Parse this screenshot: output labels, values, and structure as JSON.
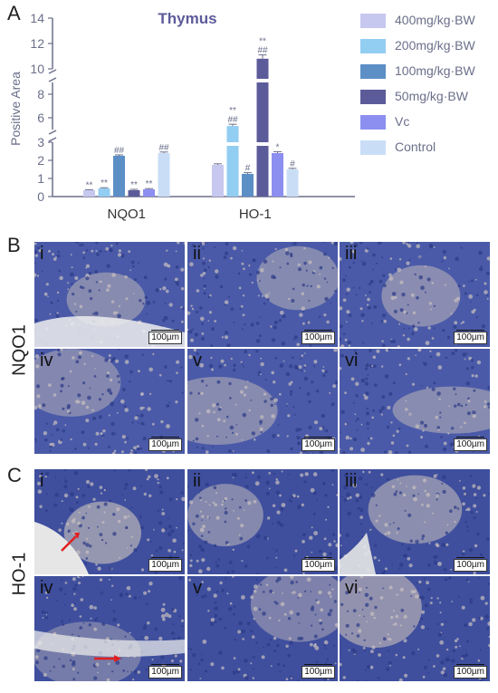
{
  "panel_letters": {
    "a": "A",
    "b": "B",
    "c": "C"
  },
  "row_labels": {
    "nqo1": "NQO1",
    "ho1": "HO-1"
  },
  "scale_bar_label": "100µm",
  "micrograph_numerals": [
    "i",
    "ii",
    "iii",
    "iv",
    "v",
    "vi"
  ],
  "colors": {
    "400": "#c7c8f0",
    "200": "#92cdf2",
    "100": "#5b8fc6",
    "50": "#5c5b9a",
    "Vc": "#8c8ff0",
    "Control": "#c9def6",
    "axis": "#6b6f8a",
    "title": "#5c5b9a"
  },
  "chart_data": {
    "type": "bar",
    "title": "Thymus",
    "ylabel": "Positive Area",
    "xlabel": "",
    "categories": [
      "NQO1",
      "HO-1"
    ],
    "axis_segments": [
      {
        "range": [
          0,
          3
        ],
        "ticks": [
          0,
          1,
          2,
          3
        ]
      },
      {
        "range": [
          5,
          9
        ],
        "ticks": [
          6,
          8
        ]
      },
      {
        "range": [
          10,
          14
        ],
        "ticks": [
          10,
          12,
          14
        ]
      }
    ],
    "legend_position": "right",
    "grid": false,
    "series": [
      {
        "name": "400mg/kg·BW",
        "values": [
          0.35,
          1.75
        ],
        "error": [
          0.03,
          0.06
        ],
        "labels": [
          "**",
          ""
        ]
      },
      {
        "name": "200mg/kg·BW",
        "values": [
          0.45,
          5.3
        ],
        "error": [
          0.04,
          0.15
        ],
        "labels": [
          "**",
          "**|##"
        ]
      },
      {
        "name": "100mg/kg·BW",
        "values": [
          2.25,
          1.25
        ],
        "error": [
          0.05,
          0.07
        ],
        "labels": [
          "##",
          "#"
        ]
      },
      {
        "name": "50mg/kg·BW",
        "values": [
          0.35,
          10.8
        ],
        "error": [
          0.05,
          0.3
        ],
        "labels": [
          "**",
          "**|##"
        ]
      },
      {
        "name": "Vc",
        "values": [
          0.4,
          2.4
        ],
        "error": [
          0.04,
          0.08
        ],
        "labels": [
          "**",
          "*"
        ]
      },
      {
        "name": "Control",
        "values": [
          2.4,
          1.5
        ],
        "error": [
          0.06,
          0.06
        ],
        "labels": [
          "##",
          "#"
        ]
      }
    ]
  }
}
